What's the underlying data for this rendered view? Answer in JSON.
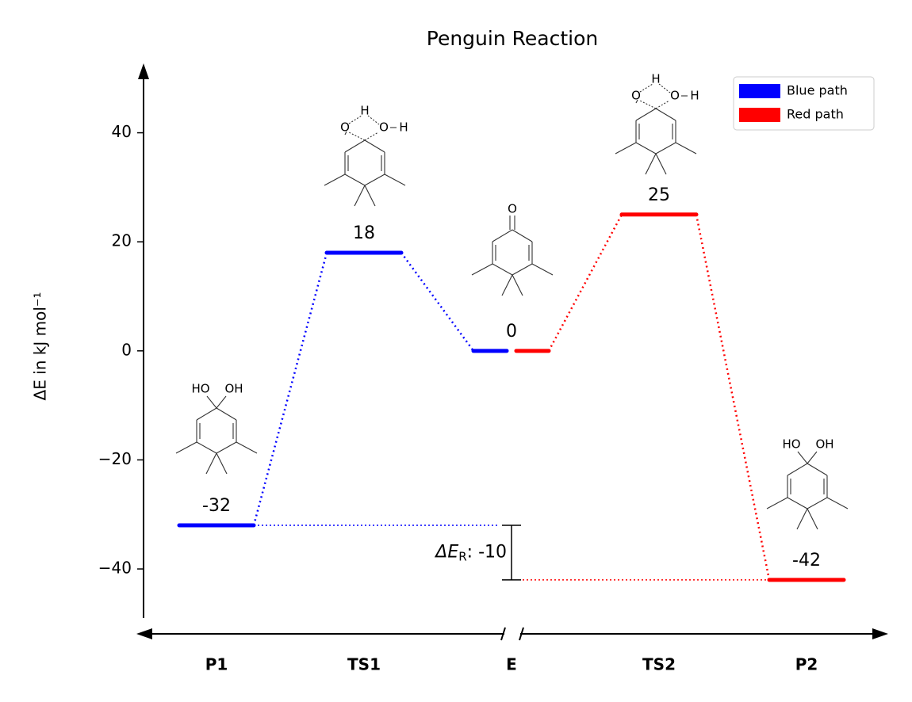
{
  "chart_data": {
    "type": "energy-diagram",
    "title": "Penguin Reaction",
    "ylabel": "ΔE in kJ mol⁻¹",
    "categories": [
      "P1",
      "TS1",
      "E",
      "TS2",
      "P2"
    ],
    "series": [
      {
        "name": "Blue path",
        "color": "#0000ff",
        "values": [
          -32,
          18,
          0,
          null,
          null
        ]
      },
      {
        "name": "Red path",
        "color": "#ff0000",
        "values": [
          null,
          null,
          0,
          25,
          -42
        ]
      }
    ],
    "ylim": [
      -49,
      52
    ],
    "yticks": [
      {
        "value": -40,
        "label": "−40"
      },
      {
        "value": -20,
        "label": "−20"
      },
      0,
      20,
      40
    ],
    "legend": "upper right",
    "annotation": {
      "symbol": "ΔE",
      "subscript": "R",
      "separator": ": ",
      "value": -10
    },
    "molecules": [
      {
        "labels": [
          "HO",
          "OH"
        ]
      },
      {
        "labels": [
          "O",
          "H",
          "O",
          "H"
        ]
      },
      {
        "labels": [
          "O"
        ]
      },
      {
        "labels": [
          "O",
          "H",
          "O",
          "H"
        ]
      },
      {
        "labels": [
          "HO",
          "OH"
        ]
      }
    ]
  }
}
